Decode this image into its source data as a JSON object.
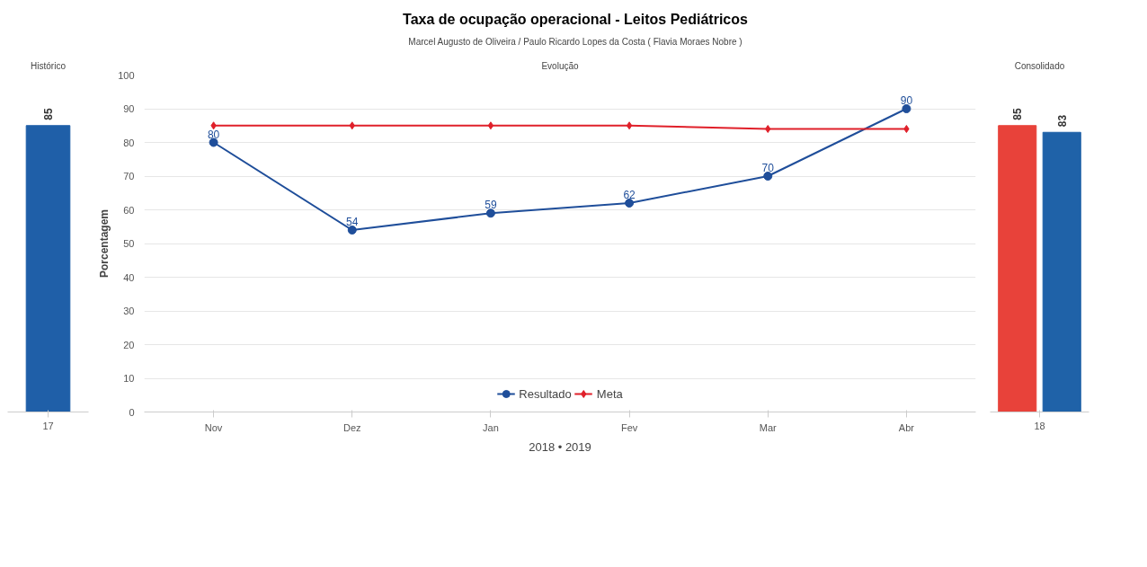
{
  "chart_data": [
    {
      "type": "bar",
      "title": "Histórico",
      "categories": [
        "17"
      ],
      "values": [
        85
      ],
      "color": "#1f5fa8",
      "ylim": [
        0,
        100
      ],
      "tick_labels": "x",
      "data_labels": true,
      "grid": false
    },
    {
      "type": "line",
      "title": "Taxa de ocupação operacional - Leitos Pediátricos",
      "subtitle": "Marcel Augusto de Oliveira / Paulo Ricardo Lopes da Costa ( Flavia Moraes Nobre )",
      "annotations": [
        "Evolução"
      ],
      "xlabel": "2018 • 2019",
      "ylabel": "Porcentagem",
      "categories": [
        "Nov",
        "Dez",
        "Jan",
        "Fev",
        "Mar",
        "Abr"
      ],
      "series": [
        {
          "name": "Resultado",
          "color": "#1f4e9a",
          "marker": "circle",
          "data_labels": true,
          "values": [
            80,
            54,
            59,
            62,
            70,
            90
          ]
        },
        {
          "name": "Meta",
          "color": "#e0202a",
          "marker": "diamond",
          "values": [
            85,
            85,
            85,
            85,
            84,
            84
          ]
        }
      ],
      "ylim": [
        0,
        100
      ],
      "yticks": [
        0,
        10,
        20,
        30,
        40,
        50,
        60,
        70,
        80,
        90,
        100
      ],
      "grid": "y",
      "legend": "bottom"
    },
    {
      "type": "bar",
      "title": "Consolidado",
      "categories": [
        "18"
      ],
      "series": [
        {
          "color": "#e8423a",
          "values": [
            85
          ]
        },
        {
          "color": "#1f62a8",
          "values": [
            83
          ]
        }
      ],
      "ylim": [
        0,
        100
      ],
      "tick_labels": "x",
      "data_labels": true,
      "grid": false
    }
  ]
}
